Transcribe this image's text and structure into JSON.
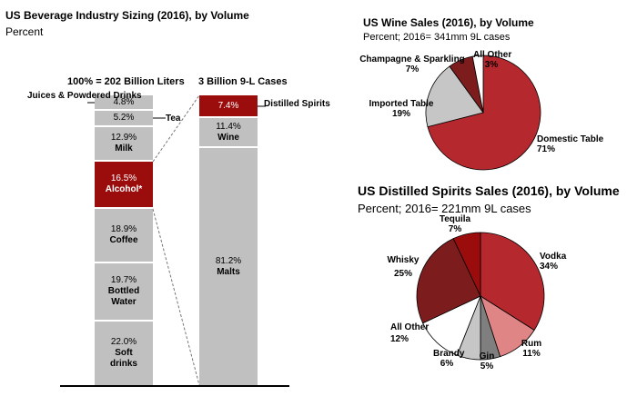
{
  "chart_data": [
    {
      "type": "bar",
      "stacked": true,
      "title": "US Beverage Industry Sizing (2016), by Volume",
      "subtitle": "Percent",
      "bars": [
        {
          "header": "100% = 202 Billion Liters",
          "segments": [
            {
              "value": "4.8%",
              "label": "Juices & Powdered Drinks",
              "color": "#c0c0c0"
            },
            {
              "value": "5.2%",
              "label": "Tea",
              "color": "#c0c0c0"
            },
            {
              "value": "12.9%",
              "label": "Milk",
              "color": "#c0c0c0"
            },
            {
              "value": "16.5%",
              "label": "Alcohol*",
              "color": "#9b0d0d"
            },
            {
              "value": "18.9%",
              "label": "Coffee",
              "color": "#c0c0c0"
            },
            {
              "value": "19.7%",
              "label": "Bottled Water",
              "color": "#c0c0c0"
            },
            {
              "value": "22.0%",
              "label": "Soft drinks",
              "color": "#c0c0c0"
            }
          ]
        },
        {
          "header": "3 Billion 9-L Cases",
          "segments": [
            {
              "value": "7.4%",
              "label": "Distilled Spirits",
              "color": "#9b0d0d"
            },
            {
              "value": "11.4%",
              "label": "Wine",
              "color": "#c0c0c0"
            },
            {
              "value": "81.2%",
              "label": "Malts",
              "color": "#c0c0c0"
            }
          ]
        }
      ]
    },
    {
      "type": "pie",
      "title": "US Wine Sales (2016), by Volume",
      "subtitle": "Percent; 2016= 341mm 9L cases",
      "slices": [
        {
          "label": "Domestic Table",
          "pct": "71%",
          "value": 71,
          "color": "#b5292e"
        },
        {
          "label": "Imported Table",
          "pct": "19%",
          "value": 19,
          "color": "#c6c6c6"
        },
        {
          "label": "Champagne & Sparkling",
          "pct": "7%",
          "value": 7,
          "color": "#7d1c1c"
        },
        {
          "label": "All Other",
          "pct": "3%",
          "value": 3,
          "color": "#ffffff"
        }
      ]
    },
    {
      "type": "pie",
      "title": "US Distilled Spirits Sales (2016), by Volume",
      "subtitle": "Percent; 2016= 221mm 9L cases",
      "slices": [
        {
          "label": "Vodka",
          "pct": "34%",
          "value": 34,
          "color": "#b5292e"
        },
        {
          "label": "Rum",
          "pct": "11%",
          "value": 11,
          "color": "#e08585"
        },
        {
          "label": "Gin",
          "pct": "5%",
          "value": 5,
          "color": "#7f7f7f"
        },
        {
          "label": "Brandy",
          "pct": "6%",
          "value": 6,
          "color": "#c6c6c6"
        },
        {
          "label": "All Other",
          "pct": "12%",
          "value": 12,
          "color": "#ffffff"
        },
        {
          "label": "Whisky",
          "pct": "25%",
          "value": 25,
          "color": "#7d1c1c"
        },
        {
          "label": "Tequila",
          "pct": "7%",
          "value": 7,
          "color": "#9b0d0d"
        }
      ]
    }
  ]
}
